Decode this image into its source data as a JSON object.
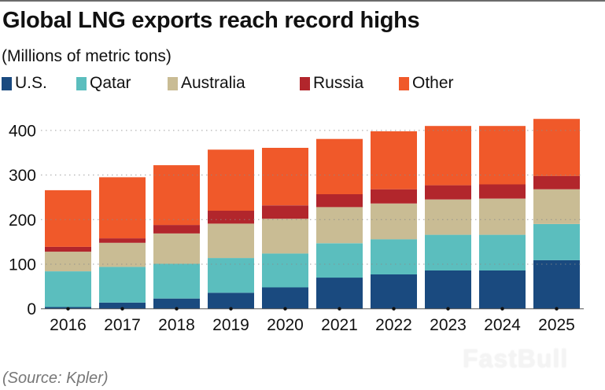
{
  "chart_data": {
    "type": "bar",
    "stacked": true,
    "title": "Global LNG exports reach record highs",
    "subtitle": "(Millions of metric tons)",
    "xlabel": "",
    "ylabel": "",
    "ylim": [
      0,
      400
    ],
    "yticks": [
      "0",
      "100",
      "200",
      "300",
      "400"
    ],
    "ytick_values": [
      0,
      100,
      200,
      300,
      400
    ],
    "grid": "horizontal dotted",
    "legend_position": "top-left",
    "categories": [
      "2016",
      "2017",
      "2018",
      "2019",
      "2020",
      "2021",
      "2022",
      "2023",
      "2024",
      "2025"
    ],
    "series": [
      {
        "name": "U.S.",
        "color": "#1a4a7f",
        "values": [
          4,
          14,
          23,
          36,
          48,
          70,
          77,
          86,
          86,
          109
        ]
      },
      {
        "name": "Qatar",
        "color": "#5bbebe",
        "values": [
          80,
          80,
          78,
          78,
          76,
          77,
          79,
          80,
          80,
          81
        ]
      },
      {
        "name": "Australia",
        "color": "#c9bc94",
        "values": [
          44,
          54,
          68,
          77,
          78,
          81,
          80,
          79,
          81,
          78
        ]
      },
      {
        "name": "Russia",
        "color": "#b2262c",
        "values": [
          11,
          10,
          19,
          29,
          30,
          29,
          32,
          32,
          32,
          30
        ]
      },
      {
        "name": "Other",
        "color": "#f0592a",
        "values": [
          127,
          137,
          134,
          137,
          129,
          124,
          130,
          133,
          131,
          128
        ]
      }
    ],
    "source": "(Source: Kpler)"
  },
  "watermark": "FastBull"
}
